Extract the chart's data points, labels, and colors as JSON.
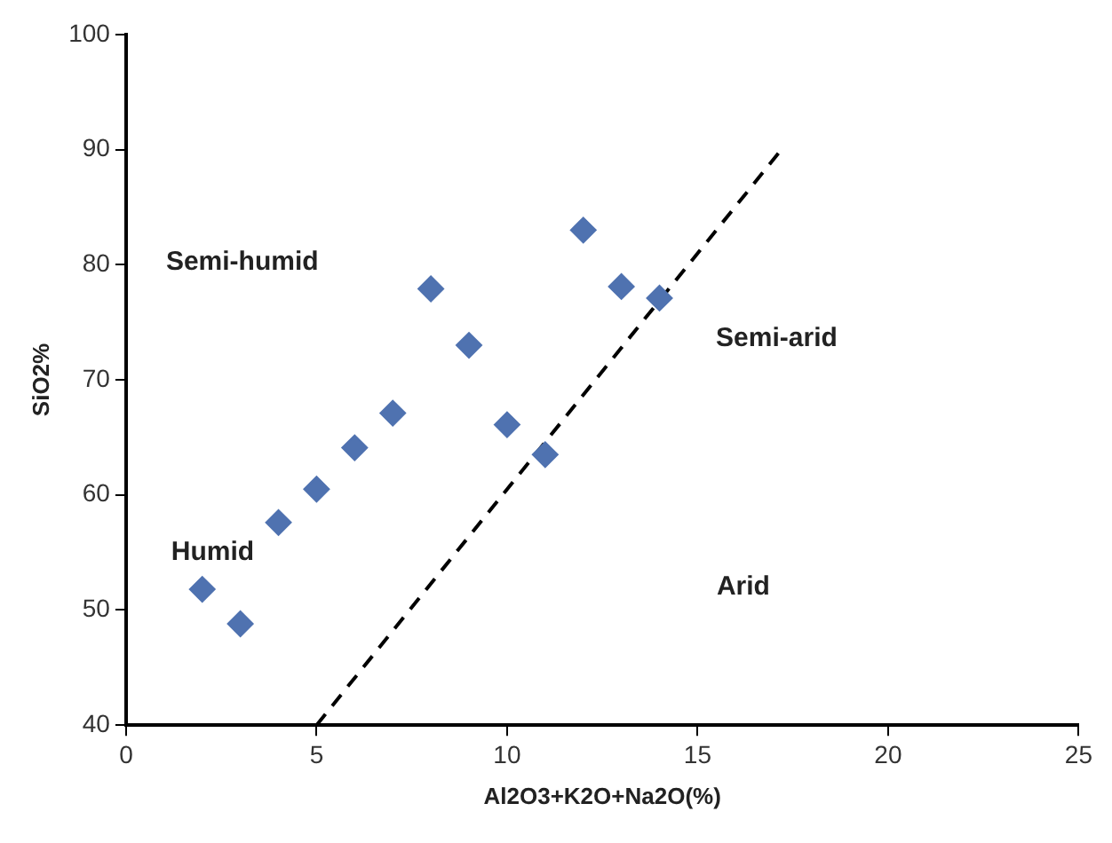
{
  "chart_data": {
    "type": "scatter",
    "xlabel": "Al2O3+K2O+Na2O(%)",
    "ylabel": "SiO2%",
    "xlim": [
      0,
      25
    ],
    "xticks": [
      0,
      5,
      10,
      15,
      20,
      25
    ],
    "ylim": [
      40,
      100
    ],
    "yticks": [
      40,
      50,
      60,
      70,
      80,
      90,
      100
    ],
    "grid": false,
    "legend": false,
    "marker": "diamond",
    "series": [
      {
        "color": "#4f72b0",
        "x": [
          2,
          3,
          4,
          5,
          6,
          7,
          8,
          9,
          10,
          11,
          12,
          13,
          14
        ],
        "values": [
          51.8,
          48.8,
          57.6,
          60.5,
          64.1,
          67.1,
          77.9,
          73,
          66.1,
          63.5,
          83,
          78.1,
          77.1
        ]
      },
      {
        "type": "line",
        "color": "#000000",
        "line_style": "dashed",
        "marker": "none",
        "x": [
          5,
          17.2
        ],
        "values": [
          40,
          90
        ]
      }
    ],
    "annotations": [
      "Semi-humid",
      "Humid",
      "Semi-arid",
      "Arid"
    ]
  }
}
